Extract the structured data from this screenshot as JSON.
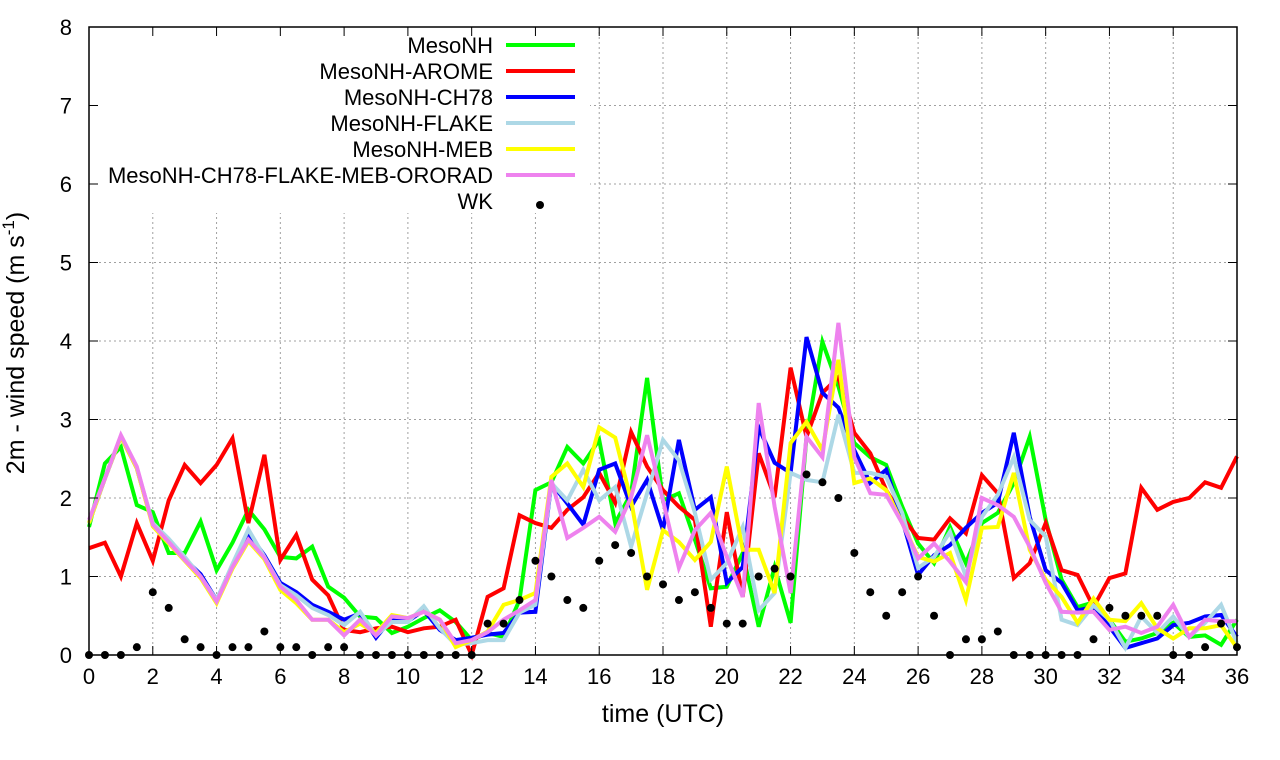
{
  "chart_data": {
    "type": "line",
    "title": "",
    "xlabel": "time (UTC)",
    "ylabel_main": "2m - wind speed  (m s",
    "ylabel_sup": "-1",
    "ylabel_close": ")",
    "xlim": [
      0,
      36
    ],
    "ylim": [
      0,
      8
    ],
    "xticks": [
      0,
      2,
      4,
      6,
      8,
      10,
      12,
      14,
      16,
      18,
      20,
      22,
      24,
      26,
      28,
      30,
      32,
      34,
      36
    ],
    "xtick_labels": [
      "0",
      "2",
      "4",
      "6",
      "8",
      "10",
      "12",
      "14",
      "16",
      "18",
      "20",
      "22",
      "24",
      "26",
      "28",
      "30",
      "32",
      "34",
      "36"
    ],
    "yticks": [
      0,
      1,
      2,
      3,
      4,
      5,
      6,
      7,
      8
    ],
    "ytick_labels": [
      "0",
      "1",
      "2",
      "3",
      "4",
      "5",
      "6",
      "7",
      "8"
    ],
    "grid": true,
    "legend_position": "top-left",
    "x_step": 0.5,
    "series": [
      {
        "name": "MesoNH",
        "color": "#00ff00",
        "style": "line",
        "values": [
          1.63,
          2.44,
          2.65,
          1.91,
          1.82,
          1.3,
          1.3,
          1.7,
          1.08,
          1.43,
          1.85,
          1.6,
          1.25,
          1.23,
          1.38,
          0.87,
          0.73,
          0.49,
          0.47,
          0.28,
          0.36,
          0.47,
          0.57,
          0.42,
          0.19,
          0.28,
          0.23,
          0.7,
          2.1,
          2.2,
          2.65,
          2.44,
          2.74,
          1.68,
          2.06,
          3.53,
          1.97,
          2.06,
          1.47,
          0.85,
          0.87,
          1.3,
          0.36,
          1.12,
          0.41,
          2.78,
          3.99,
          3.42,
          2.7,
          2.52,
          2.42,
          1.89,
          1.42,
          1.17,
          1.63,
          1.17,
          1.68,
          1.81,
          2.19,
          2.78,
          1.72,
          0.96,
          0.61,
          0.67,
          0.45,
          0.17,
          0.21,
          0.28,
          0.41,
          0.23,
          0.25,
          0.13,
          0.45
        ]
      },
      {
        "name": "MesoNH-AROME",
        "color": "#ff0000",
        "style": "line",
        "values": [
          1.36,
          1.43,
          1.0,
          1.68,
          1.2,
          1.97,
          2.42,
          2.19,
          2.42,
          2.76,
          1.68,
          2.55,
          1.21,
          1.53,
          0.96,
          0.76,
          0.32,
          0.29,
          0.34,
          0.36,
          0.29,
          0.34,
          0.36,
          0.45,
          0.0,
          0.74,
          0.85,
          1.78,
          1.68,
          1.62,
          1.85,
          2.01,
          2.32,
          1.94,
          2.84,
          2.4,
          2.1,
          1.89,
          1.72,
          0.36,
          1.82,
          0.74,
          2.57,
          2.01,
          3.66,
          2.78,
          3.34,
          3.54,
          2.83,
          2.57,
          2.1,
          1.76,
          1.49,
          1.47,
          1.74,
          1.55,
          2.29,
          2.06,
          0.98,
          1.17,
          1.68,
          1.08,
          1.02,
          0.61,
          0.98,
          1.04,
          2.13,
          1.85,
          1.95,
          2.0,
          2.2,
          2.13,
          2.53
        ]
      },
      {
        "name": "MesoNH-CH78",
        "color": "#0000ff",
        "style": "line",
        "values": [
          1.68,
          2.25,
          2.78,
          2.38,
          1.66,
          1.46,
          1.22,
          1.03,
          0.7,
          1.14,
          1.55,
          1.27,
          0.92,
          0.8,
          0.64,
          0.55,
          0.45,
          0.53,
          0.22,
          0.47,
          0.43,
          0.57,
          0.32,
          0.19,
          0.22,
          0.26,
          0.28,
          0.54,
          0.55,
          2.19,
          1.93,
          1.66,
          2.36,
          2.44,
          1.89,
          2.23,
          1.59,
          2.74,
          1.85,
          2.01,
          0.92,
          1.12,
          2.9,
          2.45,
          2.32,
          4.05,
          3.34,
          3.15,
          2.61,
          2.19,
          2.36,
          1.72,
          1.02,
          1.27,
          1.4,
          1.62,
          1.81,
          1.94,
          2.83,
          1.76,
          1.08,
          0.92,
          0.57,
          0.61,
          0.36,
          0.09,
          0.15,
          0.21,
          0.38,
          0.41,
          0.49,
          0.51,
          0.23
        ]
      },
      {
        "name": "MesoNH-FLAKE",
        "color": "#add8e6",
        "style": "line",
        "values": [
          1.68,
          2.25,
          2.78,
          2.38,
          1.68,
          1.48,
          1.25,
          1.0,
          0.7,
          1.16,
          1.6,
          1.25,
          0.89,
          0.76,
          0.6,
          0.51,
          0.38,
          0.55,
          0.25,
          0.42,
          0.42,
          0.62,
          0.34,
          0.13,
          0.15,
          0.19,
          0.19,
          0.54,
          0.64,
          2.19,
          1.97,
          2.36,
          1.97,
          2.14,
          1.38,
          2.06,
          2.74,
          2.48,
          1.81,
          0.96,
          1.17,
          1.63,
          0.57,
          0.79,
          2.32,
          2.23,
          2.2,
          3.06,
          2.32,
          2.32,
          2.27,
          1.81,
          1.11,
          1.25,
          1.57,
          1.0,
          1.76,
          2.04,
          2.52,
          1.72,
          1.51,
          0.45,
          0.38,
          0.63,
          0.45,
          0.09,
          0.49,
          0.28,
          0.49,
          0.23,
          0.41,
          0.64,
          0.15
        ]
      },
      {
        "name": "MesoNH-MEB",
        "color": "#ffff00",
        "style": "line",
        "values": [
          1.68,
          2.25,
          2.78,
          2.38,
          1.64,
          1.42,
          1.2,
          0.98,
          0.66,
          1.1,
          1.45,
          1.22,
          0.83,
          0.66,
          0.45,
          0.45,
          0.29,
          0.4,
          0.28,
          0.51,
          0.47,
          0.55,
          0.45,
          0.1,
          0.19,
          0.3,
          0.64,
          0.7,
          0.79,
          2.27,
          2.44,
          2.14,
          2.9,
          2.77,
          1.97,
          0.83,
          1.59,
          1.44,
          1.21,
          1.44,
          2.4,
          1.34,
          1.34,
          0.79,
          2.7,
          2.97,
          2.61,
          3.76,
          2.19,
          2.25,
          2.1,
          1.68,
          1.25,
          1.19,
          1.3,
          0.7,
          1.62,
          1.63,
          2.32,
          1.34,
          0.96,
          0.74,
          0.41,
          0.72,
          0.45,
          0.43,
          0.66,
          0.34,
          0.21,
          0.34,
          0.34,
          0.38,
          0.09
        ]
      },
      {
        "name": "MesoNH-CH78-FLAKE-MEB-ORORAD",
        "color": "#ee82ee",
        "style": "line",
        "values": [
          1.72,
          2.25,
          2.8,
          2.4,
          1.66,
          1.44,
          1.21,
          1.0,
          0.68,
          1.12,
          1.47,
          1.24,
          0.87,
          0.7,
          0.45,
          0.45,
          0.25,
          0.45,
          0.25,
          0.49,
          0.47,
          0.55,
          0.45,
          0.15,
          0.19,
          0.29,
          0.45,
          0.57,
          0.7,
          2.23,
          1.49,
          1.62,
          1.76,
          1.57,
          2.01,
          2.8,
          1.97,
          1.11,
          1.59,
          1.81,
          1.25,
          0.74,
          3.21,
          1.89,
          0.79,
          2.78,
          2.52,
          4.23,
          2.52,
          2.06,
          2.04,
          1.68,
          1.23,
          1.42,
          1.19,
          0.93,
          2.0,
          1.91,
          1.76,
          1.38,
          0.92,
          0.55,
          0.54,
          0.55,
          0.32,
          0.36,
          0.28,
          0.36,
          0.64,
          0.23,
          0.45,
          0.43,
          0.43
        ]
      },
      {
        "name": "WK",
        "color": "#000000",
        "style": "points",
        "values": [
          0,
          0,
          0,
          0.1,
          0.8,
          0.6,
          0.2,
          0.1,
          0,
          0.1,
          0.1,
          0.3,
          0.1,
          0.1,
          0,
          0.1,
          0.1,
          0,
          0,
          0,
          0,
          0,
          0,
          0,
          0,
          0.4,
          0.4,
          0.7,
          1.2,
          1.0,
          0.7,
          0.6,
          1.2,
          1.4,
          1.3,
          1.0,
          0.9,
          0.7,
          0.8,
          0.6,
          0.4,
          0.4,
          1.0,
          1.1,
          1.0,
          2.3,
          2.2,
          2.0,
          1.3,
          0.8,
          0.5,
          0.8,
          1.0,
          0.5,
          0,
          0.2,
          0.2,
          0.3,
          0,
          0,
          0,
          0,
          0,
          0.2,
          0.6,
          0.5,
          0.5,
          0.5,
          0,
          0,
          0.1,
          0.4,
          0.1
        ]
      }
    ]
  }
}
